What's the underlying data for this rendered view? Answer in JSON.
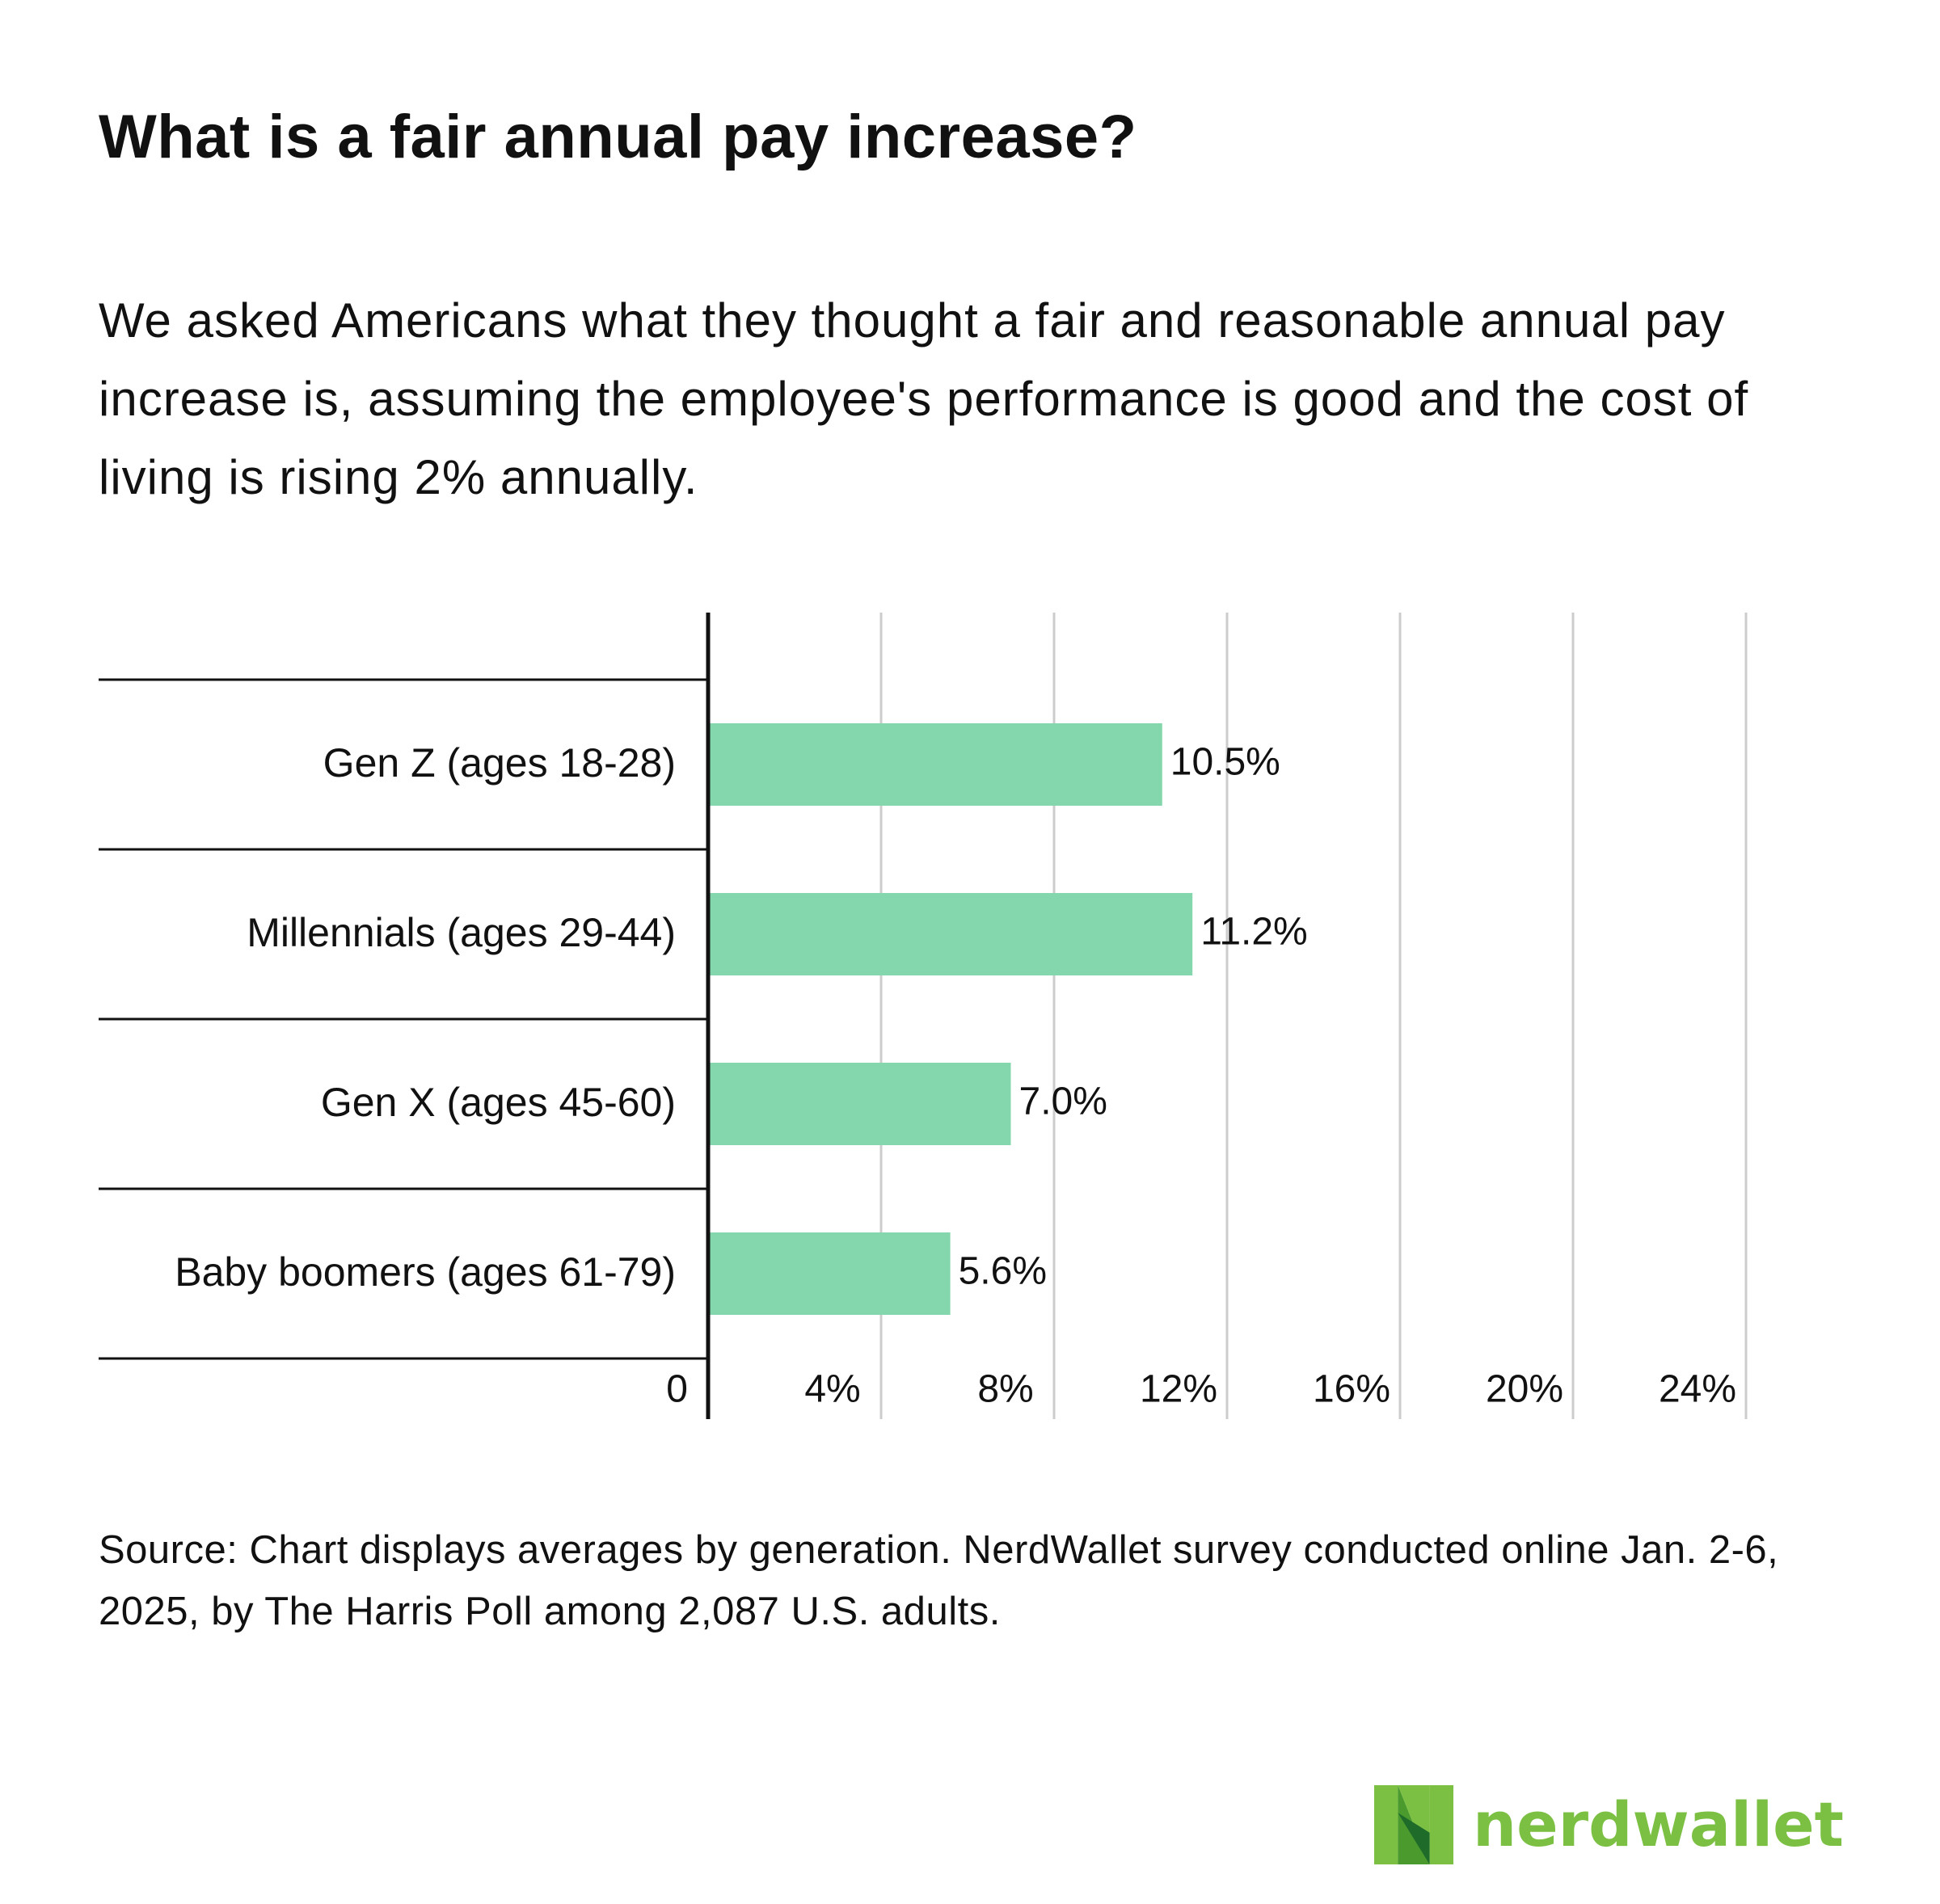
{
  "title": "What is a fair annual pay increase?",
  "subtitle": "We asked Americans what they thought a fair and reasonable annual pay increase is, assuming the employee's performance is good and the cost of living is rising 2% annually.",
  "source": "Source: Chart displays averages by generation. NerdWallet survey conducted online Jan. 2-6, 2025, by The Harris Poll among 2,087 U.S. adults.",
  "logo": {
    "text": "nerdwallet",
    "icon": "nerdwallet-logo-icon",
    "color": "#7bc043"
  },
  "chart_data": {
    "type": "bar",
    "orientation": "horizontal",
    "categories": [
      "Gen Z (ages 18-28)",
      "Millennials (ages 29-44)",
      "Gen X (ages 45-60)",
      "Baby boomers (ages 61-79)"
    ],
    "values": [
      10.5,
      11.2,
      7.0,
      5.6
    ],
    "value_labels": [
      "10.5%",
      "11.2%",
      "7.0%",
      "5.6%"
    ],
    "xlim": [
      0,
      24
    ],
    "xticks": [
      0,
      4,
      8,
      12,
      16,
      20,
      24
    ],
    "xtick_labels": [
      "0",
      "4%",
      "8%",
      "12%",
      "16%",
      "20%",
      "24%"
    ],
    "grid": true,
    "bar_color": "#84d7ac",
    "grid_color": "#cccccc",
    "axis_color": "#111111"
  }
}
